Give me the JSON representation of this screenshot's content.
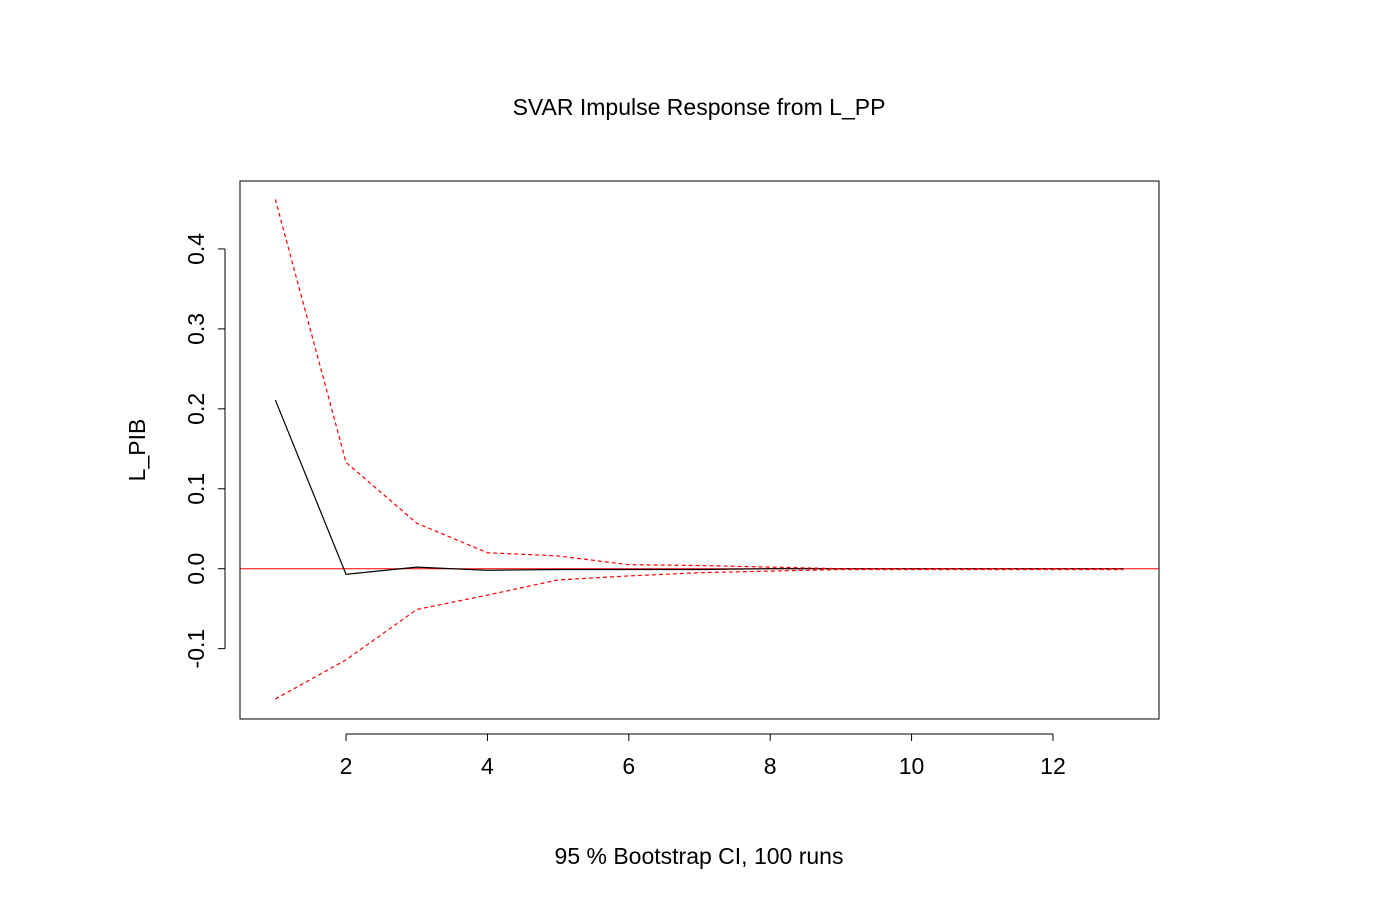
{
  "chart_data": {
    "type": "line",
    "title": "SVAR Impulse Response from L_PP",
    "xlabel": "95 % Bootstrap CI,  100 runs",
    "ylabel": "L_PIB",
    "xlim": [
      0.5,
      13.5
    ],
    "ylim": [
      -0.188,
      0.485
    ],
    "xticks": [
      2,
      4,
      6,
      8,
      10,
      12
    ],
    "yticks": [
      -0.1,
      0.0,
      0.1,
      0.2,
      0.3,
      0.4
    ],
    "xtick_labels": [
      "2",
      "4",
      "6",
      "8",
      "10",
      "12"
    ],
    "ytick_labels": [
      "-0.1",
      "0.0",
      "0.1",
      "0.2",
      "0.3",
      "0.4"
    ],
    "grid": false,
    "legend": "none",
    "x": [
      1,
      2,
      3,
      4,
      5,
      6,
      7,
      8,
      9,
      10,
      11,
      12,
      13
    ],
    "series": [
      {
        "role": "response",
        "style": "solid",
        "color": "#000000",
        "values": [
          0.211,
          -0.007,
          0.002,
          -0.002,
          -0.001,
          -0.001,
          -0.001,
          0.0,
          0.0,
          0.0,
          0.0,
          0.0,
          0.0
        ]
      },
      {
        "role": "upper",
        "style": "dashed",
        "color": "#ff0000",
        "values": [
          0.462,
          0.133,
          0.057,
          0.02,
          0.016,
          0.005,
          0.004,
          0.002,
          0.0,
          0.0,
          0.0,
          0.0,
          0.0
        ]
      },
      {
        "role": "lower",
        "style": "dashed",
        "color": "#ff0000",
        "values": [
          -0.163,
          -0.114,
          -0.051,
          -0.033,
          -0.014,
          -0.009,
          -0.005,
          -0.003,
          -0.001,
          -0.001,
          -0.001,
          -0.001,
          -0.001
        ]
      }
    ],
    "reference_line": {
      "y": 0,
      "color": "#ff0000"
    }
  }
}
